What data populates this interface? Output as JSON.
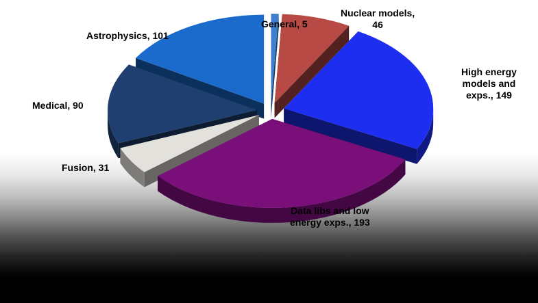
{
  "chart_data": {
    "type": "pie",
    "style": "3d-exploded",
    "title": "",
    "slices": [
      {
        "name": "General",
        "value": 5,
        "label": "General, 5",
        "color": "#3f7fd0"
      },
      {
        "name": "Nuclear models",
        "value": 46,
        "label": "Nuclear models,\n46",
        "color": "#b84a45"
      },
      {
        "name": "High energy models and exps.",
        "value": 149,
        "label": "High energy\nmodels and\nexps., 149",
        "color": "#1e2ef0"
      },
      {
        "name": "Data libs and low energy exps.",
        "value": 193,
        "label": "Data libs and low\nenergy exps., 193",
        "color": "#7a0f7a"
      },
      {
        "name": "Fusion",
        "value": 31,
        "label": "Fusion, 31",
        "color": "#e3e1dc"
      },
      {
        "name": "Medical",
        "value": 90,
        "label": "Medical, 90",
        "color": "#1f3f70"
      },
      {
        "name": "Astrophysics",
        "value": 101,
        "label": "Astrophysics, 101",
        "color": "#1a6bcc"
      }
    ]
  }
}
